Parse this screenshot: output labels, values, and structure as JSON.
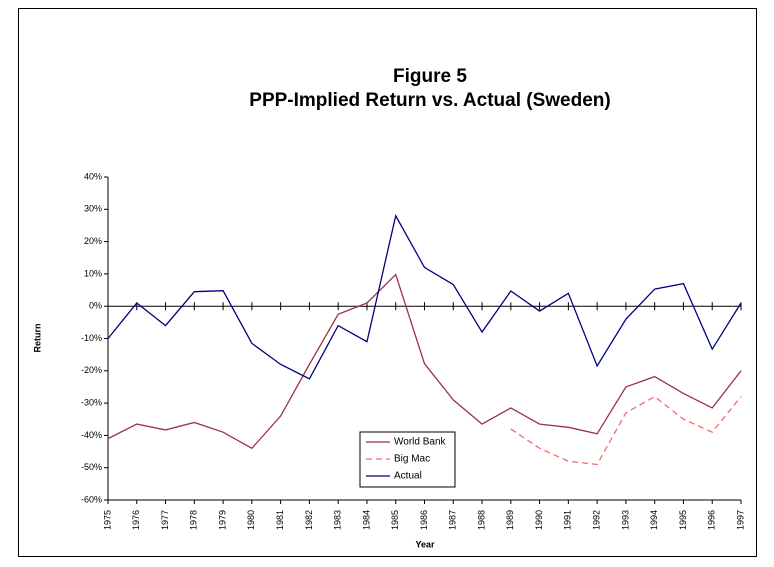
{
  "chart_data": {
    "type": "line",
    "title": "Figure 5",
    "subtitle": "PPP-Implied Return vs. Actual (Sweden)",
    "x_label": "Year",
    "y_label": "Return",
    "categories": [
      "1975",
      "1976",
      "1977",
      "1978",
      "1979",
      "1980",
      "1981",
      "1982",
      "1983",
      "1984",
      "1985",
      "1986",
      "1987",
      "1988",
      "1989",
      "1990",
      "1991",
      "1992",
      "1993",
      "1994",
      "1995",
      "1996",
      "1997"
    ],
    "series": [
      {
        "name": "World Bank",
        "color": "#993344",
        "dash": "solid",
        "values": [
          -41,
          -36.5,
          -38.3,
          -36,
          -39,
          -44,
          -34,
          -18,
          -2.5,
          1,
          9.8,
          -17.8,
          -29,
          -36.5,
          -31.5,
          -36.5,
          -37.5,
          -39.5,
          -25,
          -21.8,
          -27,
          -31.5,
          -20
        ]
      },
      {
        "name": "Big Mac",
        "color": "#ff6666",
        "dash": "dashed",
        "values": [
          null,
          null,
          null,
          null,
          null,
          null,
          null,
          null,
          null,
          null,
          null,
          null,
          null,
          null,
          -38,
          -44,
          -48,
          -49,
          -33,
          -28,
          -35,
          -39,
          -28
        ]
      },
      {
        "name": "Actual",
        "color": "#000080",
        "dash": "solid",
        "values": [
          -10,
          1,
          -6,
          4.5,
          4.8,
          -11.5,
          -18,
          -22.5,
          -6,
          -11,
          28,
          12,
          6.7,
          -8,
          4.7,
          -1.5,
          4,
          -18.5,
          -4,
          5.3,
          7,
          -13.3,
          1
        ]
      }
    ],
    "ylim": [
      -60,
      40
    ],
    "yticks": [
      {
        "value": -60,
        "label": "-60%"
      },
      {
        "value": -50,
        "label": "-50%"
      },
      {
        "value": -40,
        "label": "-40%"
      },
      {
        "value": -30,
        "label": "-30%"
      },
      {
        "value": -20,
        "label": "-20%"
      },
      {
        "value": -10,
        "label": "-10%"
      },
      {
        "value": 0,
        "label": "0%"
      },
      {
        "value": 10,
        "label": "10%"
      },
      {
        "value": 20,
        "label": "20%"
      },
      {
        "value": 30,
        "label": "30%"
      },
      {
        "value": 40,
        "label": "40%"
      }
    ],
    "grid": false,
    "legend": "bottom-center"
  }
}
